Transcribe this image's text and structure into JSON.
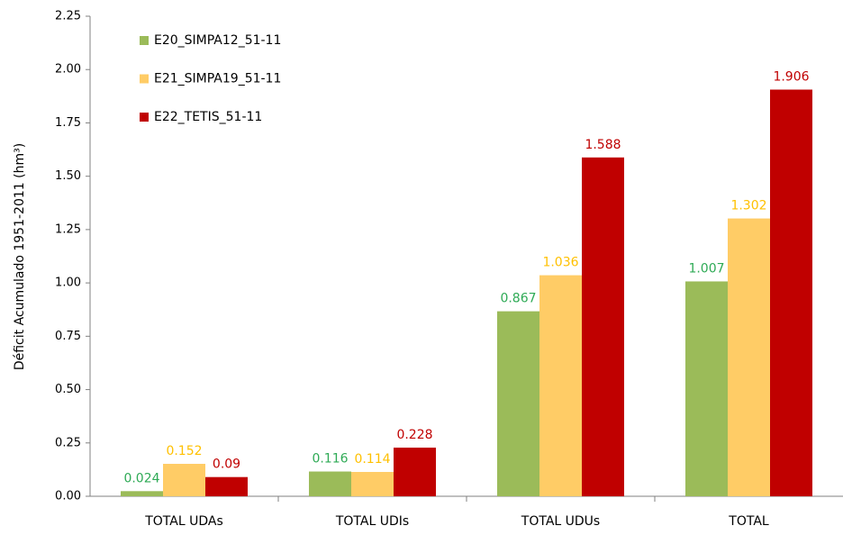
{
  "chart_data": {
    "type": "bar",
    "y_label": "Déficit Acumulado 1951-2011 (hm³)",
    "categories": [
      "TOTAL UDAs",
      "TOTAL UDIs",
      "TOTAL UDUs",
      "TOTAL"
    ],
    "series": [
      {
        "name": "E20_SIMPA12_51-11",
        "color": "#9bbb59",
        "label_color": "#2eaa55",
        "values": [
          0.024,
          0.116,
          0.867,
          1.007
        ]
      },
      {
        "name": "E21_SIMPA19_51-11",
        "color": "#ffcc66",
        "label_color": "#ffc000",
        "values": [
          0.152,
          0.114,
          1.036,
          1.302
        ]
      },
      {
        "name": "E22_TETIS_51-11",
        "color": "#c00000",
        "label_color": "#c00000",
        "values": [
          0.09,
          0.228,
          1.588,
          1.906
        ]
      }
    ],
    "ylim": [
      0,
      2.25
    ],
    "yticks": [
      {
        "value": 0,
        "label": "0.00"
      },
      0.25,
      {
        "value": 0.5,
        "label": "0.50"
      },
      0.75,
      {
        "value": 1,
        "label": "1.00"
      },
      1.25,
      {
        "value": 1.5,
        "label": "1.50"
      },
      1.75,
      {
        "value": 2,
        "label": "2.00"
      },
      2.25
    ],
    "legend": "upper left"
  }
}
